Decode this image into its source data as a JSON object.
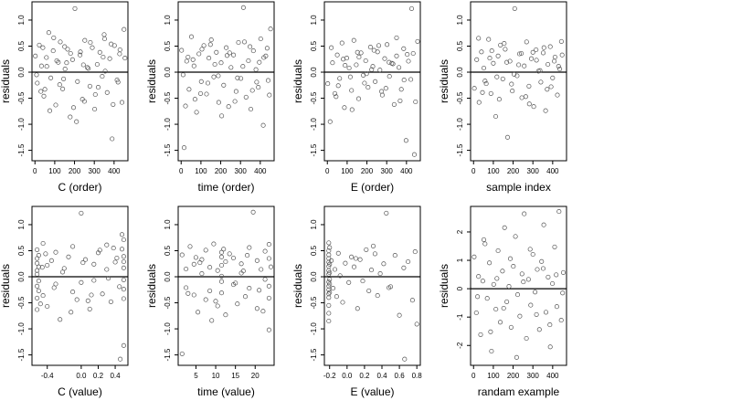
{
  "figure": {
    "point_color": "#555555",
    "zero_line_color": "#000000"
  },
  "chart_data": [
    {
      "type": "scatter",
      "title": "",
      "xlabel": "C (order)",
      "ylabel": "residuals",
      "xlim": [
        -15,
        470
      ],
      "ylim": [
        -1.7,
        1.35
      ],
      "xticks": [
        0,
        100,
        200,
        300,
        400
      ],
      "xtick_labels": [
        "0",
        "100",
        "200",
        "300",
        "400"
      ],
      "yticks": [
        -1.5,
        -1.0,
        -0.5,
        0.0,
        0.5,
        1.0
      ],
      "ytick_labels": [
        "-1.5",
        "-1.0",
        "-0.5",
        "0.0",
        "0.5",
        "1.0"
      ],
      "reference_line_y": 0,
      "x": [
        2,
        12,
        22,
        33,
        45,
        58,
        70,
        80,
        92,
        105,
        118,
        128,
        140,
        152,
        165,
        178,
        190,
        202,
        215,
        228,
        240,
        252,
        265,
        278,
        290,
        302,
        315,
        328,
        340,
        352,
        365,
        378,
        390,
        402,
        415,
        428,
        440,
        450,
        30,
        60,
        95,
        125,
        160,
        195,
        230,
        270,
        305,
        345,
        385,
        420,
        8,
        40,
        75,
        110,
        145,
        180,
        210,
        245,
        280,
        320,
        355,
        395,
        430,
        455,
        50,
        150,
        250,
        350
      ],
      "y": [
        0.31,
        -0.21,
        0.52,
        0.12,
        -0.46,
        0.28,
        0.76,
        -0.11,
        0.41,
        -0.63,
        0.19,
        0.58,
        -0.32,
        0.06,
        0.44,
        -0.86,
        0.24,
        1.22,
        -0.18,
        0.33,
        -0.52,
        0.61,
        0.09,
        -0.27,
        0.47,
        -0.71,
        0.15,
        0.38,
        -0.08,
        0.64,
        -0.39,
        0.26,
        -1.28,
        0.51,
        -0.15,
        0.35,
        -0.58,
        0.82,
        -0.37,
        0.11,
        0.66,
        -0.24,
        0.18,
        -0.68,
        0.39,
        0.07,
        -0.43,
        0.29,
        0.54,
        -0.19,
        -0.05,
        0.47,
        -0.74,
        0.22,
        -0.13,
        0.36,
        -0.95,
        0.14,
        0.57,
        -0.29,
        0.02,
        -0.62,
        0.43,
        0.27,
        -0.33,
        0.49,
        -0.56,
        0.72
      ]
    },
    {
      "type": "scatter",
      "title": "",
      "xlabel": "time (order)",
      "ylabel": "residuals",
      "xlim": [
        -15,
        470
      ],
      "ylim": [
        -1.7,
        1.35
      ],
      "xticks": [
        0,
        100,
        200,
        300,
        400
      ],
      "xtick_labels": [
        "0",
        "100",
        "200",
        "300",
        "400"
      ],
      "yticks": [
        -1.5,
        -1.0,
        -0.5,
        0.0,
        0.5,
        1.0
      ],
      "ytick_labels": [
        "-1.5",
        "-1.0",
        "-0.5",
        "0.0",
        "0.5",
        "1.0"
      ],
      "reference_line_y": 0,
      "x": [
        2,
        15,
        28,
        40,
        52,
        65,
        78,
        90,
        102,
        115,
        128,
        140,
        152,
        165,
        178,
        190,
        202,
        215,
        228,
        240,
        252,
        265,
        278,
        290,
        302,
        315,
        328,
        340,
        352,
        365,
        378,
        390,
        402,
        415,
        428,
        440,
        452,
        10,
        35,
        70,
        105,
        135,
        170,
        205,
        245,
        285,
        320,
        360,
        395,
        435,
        22,
        60,
        98,
        148,
        188,
        232,
        272,
        312,
        348,
        382,
        418,
        446
      ],
      "y": [
        0.42,
        -1.45,
        0.21,
        -0.33,
        0.68,
        0.12,
        -0.77,
        0.35,
        -0.18,
        0.51,
        -0.42,
        0.27,
        0.62,
        -0.09,
        0.38,
        -0.58,
        0.18,
        -0.25,
        0.47,
        -0.66,
        0.09,
        0.33,
        -0.37,
        0.57,
        -0.12,
        1.24,
        -0.48,
        0.22,
        -0.71,
        0.41,
        0.05,
        -0.29,
        0.64,
        -1.02,
        0.31,
        -0.16,
        0.83,
        -0.05,
        0.29,
        -0.52,
        0.44,
        -0.21,
        0.15,
        -0.84,
        0.37,
        -0.11,
        0.58,
        -0.35,
        0.19,
        0.46,
        -0.65,
        0.24,
        -0.41,
        0.53,
        -0.07,
        0.32,
        -0.56,
        0.11,
        0.49,
        -0.19,
        0.28,
        -0.44
      ]
    },
    {
      "type": "scatter",
      "title": "",
      "xlabel": "E (order)",
      "ylabel": "residuals",
      "xlim": [
        -15,
        470
      ],
      "ylim": [
        -1.7,
        1.35
      ],
      "xticks": [
        0,
        100,
        200,
        300,
        400
      ],
      "xtick_labels": [
        "0",
        "100",
        "200",
        "300",
        "400"
      ],
      "yticks": [
        -1.5,
        -1.0,
        -0.5,
        0.0,
        0.5,
        1.0
      ],
      "ytick_labels": [
        "-1.5",
        "-1.0",
        "-0.5",
        "0.0",
        "0.5",
        "1.0"
      ],
      "reference_line_y": 0,
      "x": [
        2,
        14,
        26,
        38,
        50,
        62,
        74,
        86,
        98,
        110,
        122,
        134,
        146,
        158,
        170,
        182,
        194,
        206,
        218,
        230,
        242,
        254,
        266,
        278,
        290,
        302,
        314,
        326,
        338,
        350,
        362,
        374,
        386,
        398,
        410,
        422,
        434,
        446,
        456,
        20,
        55,
        90,
        125,
        160,
        198,
        236,
        274,
        312,
        350,
        388,
        426,
        44,
        80,
        116,
        152,
        188,
        224,
        260,
        296,
        332,
        368,
        404,
        440
      ],
      "y": [
        -0.22,
        -0.95,
        0.18,
        -0.41,
        0.33,
        -0.12,
        0.56,
        -0.68,
        0.27,
        0.08,
        -0.35,
        0.61,
        0.14,
        -0.51,
        0.37,
        -0.06,
        0.22,
        -0.29,
        0.48,
        0.11,
        -0.18,
        0.39,
        0.04,
        -0.44,
        0.26,
        0.53,
        -0.08,
        0.17,
        -0.62,
        0.31,
        0.09,
        -0.33,
        0.45,
        -1.31,
        0.21,
        -0.14,
        0.36,
        -0.57,
        0.59,
        0.47,
        -0.26,
        0.13,
        -0.72,
        0.29,
        -0.03,
        0.42,
        -0.37,
        0.19,
        0.66,
        -0.15,
        1.22,
        -0.47,
        0.25,
        -0.09,
        0.38,
        -0.21,
        0.05,
        0.51,
        -0.31,
        0.16,
        -0.55,
        0.34,
        -1.58
      ]
    },
    {
      "type": "scatter",
      "title": "",
      "xlabel": "sample index",
      "ylabel": "residuals",
      "xlim": [
        -15,
        470
      ],
      "ylim": [
        -1.7,
        1.35
      ],
      "xticks": [
        0,
        100,
        200,
        300,
        400
      ],
      "xtick_labels": [
        "0",
        "100",
        "200",
        "300",
        "400"
      ],
      "yticks": [
        -1.5,
        -1.0,
        -0.5,
        0.0,
        0.5,
        1.0
      ],
      "ytick_labels": [
        "-1.5",
        "-1.0",
        "-0.5",
        "0.0",
        "0.5",
        "1.0"
      ],
      "reference_line_y": 0,
      "x": [
        4,
        16,
        28,
        40,
        52,
        64,
        76,
        88,
        100,
        112,
        124,
        136,
        148,
        160,
        172,
        184,
        196,
        208,
        220,
        232,
        244,
        256,
        268,
        280,
        292,
        304,
        316,
        328,
        340,
        352,
        364,
        376,
        388,
        400,
        412,
        424,
        436,
        448,
        25,
        58,
        92,
        130,
        168,
        205,
        242,
        282,
        318,
        356,
        392,
        430,
        45,
        82,
        118,
        155,
        192,
        228,
        264,
        300,
        336,
        372,
        408,
        444
      ],
      "y": [
        -0.31,
        0.24,
        -0.58,
        0.39,
        0.08,
        -0.22,
        0.63,
        -0.41,
        0.17,
        -0.85,
        0.31,
        0.52,
        -0.13,
        0.44,
        -1.25,
        0.21,
        -0.36,
        1.22,
        -0.07,
        0.35,
        -0.49,
        0.12,
        0.58,
        -0.27,
        0.26,
        -0.66,
        0.43,
        0.02,
        -0.19,
        0.37,
        -0.74,
        0.15,
        0.49,
        -0.11,
        0.29,
        -0.44,
        0.06,
        0.33,
        0.65,
        -0.17,
        0.41,
        -0.52,
        0.19,
        -0.04,
        0.36,
        -0.61,
        0.23,
        0.47,
        -0.28,
        0.11,
        -0.39,
        0.27,
        -0.09,
        0.55,
        -0.23,
        0.14,
        -0.47,
        0.38,
        0.03,
        -0.33,
        0.21,
        0.59
      ]
    },
    {
      "type": "scatter",
      "title": "",
      "xlabel": "C (value)",
      "ylabel": "residuals",
      "xlim": [
        -0.58,
        0.55
      ],
      "ylim": [
        -1.7,
        1.35
      ],
      "xticks": [
        -0.4,
        0.0,
        0.2,
        0.4
      ],
      "xtick_labels": [
        "-0.4",
        "0.0",
        "0.2",
        "0.4"
      ],
      "yticks": [
        -1.5,
        -1.0,
        -0.5,
        0.0,
        0.5,
        1.0
      ],
      "ytick_labels": [
        "-1.5",
        "-1.0",
        "-0.5",
        "0.0",
        "0.5",
        "1.0"
      ],
      "reference_line_y": 0,
      "x": [
        -0.52,
        -0.52,
        -0.52,
        -0.52,
        -0.52,
        -0.52,
        -0.52,
        -0.52,
        -0.5,
        -0.5,
        -0.5,
        -0.5,
        -0.45,
        -0.45,
        -0.4,
        -0.4,
        -0.35,
        -0.3,
        -0.3,
        -0.25,
        -0.2,
        -0.15,
        -0.1,
        -0.1,
        -0.05,
        0.0,
        0.0,
        0.05,
        0.1,
        0.15,
        0.15,
        0.2,
        0.25,
        0.3,
        0.3,
        0.35,
        0.4,
        0.45,
        0.48,
        0.5,
        0.5,
        0.5,
        0.5,
        0.5,
        0.5,
        0.5,
        0.5,
        -0.48,
        -0.42,
        -0.32,
        -0.22,
        -0.12,
        0.02,
        0.12,
        0.22,
        0.32,
        0.42,
        0.46,
        -0.46,
        0.08,
        0.38,
        0.48
      ],
      "y": [
        0.35,
        0.12,
        -0.18,
        0.52,
        -0.41,
        0.26,
        -0.63,
        0.05,
        0.41,
        -0.27,
        0.19,
        -0.08,
        0.64,
        -0.36,
        0.22,
        -0.57,
        0.31,
        -0.14,
        0.47,
        -0.82,
        0.16,
        0.38,
        -0.29,
        0.58,
        -0.44,
        1.22,
        -0.11,
        0.33,
        -0.62,
        0.24,
        -0.07,
        0.46,
        -0.33,
        0.14,
        0.61,
        -0.48,
        0.28,
        -0.19,
        0.53,
        0.39,
        -0.24,
        0.71,
        -0.06,
        0.17,
        -0.42,
        0.29,
        -1.32,
        -0.52,
        0.44,
        -0.21,
        0.09,
        -0.68,
        0.27,
        -0.35,
        0.51,
        -0.03,
        0.36,
        -1.58,
        0.18,
        -0.46,
        0.55,
        0.81
      ]
    },
    {
      "type": "scatter",
      "title": "",
      "xlabel": "time (value)",
      "ylabel": "residuals",
      "xlim": [
        0.5,
        24.8
      ],
      "ylim": [
        -1.7,
        1.35
      ],
      "xticks": [
        5,
        10,
        15,
        20
      ],
      "xtick_labels": [
        "5",
        "10",
        "15",
        "20"
      ],
      "yticks": [
        -1.5,
        -1.0,
        -0.5,
        0.0,
        0.5,
        1.0
      ],
      "ytick_labels": [
        "-1.5",
        "-1.0",
        "-0.5",
        "0.0",
        "0.5",
        "1.0"
      ],
      "reference_line_y": 0,
      "x": [
        1.5,
        1.5,
        2.5,
        2.5,
        3.5,
        4.5,
        4.5,
        5.5,
        6.5,
        6.5,
        7.5,
        7.5,
        8.5,
        8.5,
        9.5,
        10.5,
        10.5,
        11.5,
        11.5,
        11.5,
        11.5,
        11.5,
        11.5,
        12.5,
        12.5,
        13.5,
        14.5,
        14.5,
        15.5,
        16.5,
        16.5,
        17.5,
        18.5,
        18.5,
        19.5,
        20.5,
        20.5,
        21.5,
        22.5,
        22.5,
        23.5,
        23.5,
        23.5,
        23.5,
        23.5,
        3.0,
        6.0,
        9.0,
        12.0,
        15.0,
        18.0,
        21.0,
        24.0,
        5.0,
        10.0,
        17.0,
        22.0
      ],
      "y": [
        0.42,
        -1.48,
        -0.21,
        0.15,
        0.58,
        -0.35,
        0.24,
        -0.68,
        0.33,
        0.06,
        -0.44,
        0.51,
        0.18,
        -0.27,
        0.63,
        0.12,
        -0.56,
        0.38,
        -0.09,
        0.22,
        0.47,
        -0.31,
        0.01,
        -0.73,
        0.29,
        0.44,
        -0.15,
        0.36,
        -0.52,
        0.25,
        0.07,
        -0.38,
        0.56,
        -0.22,
        1.24,
        0.31,
        -0.61,
        0.14,
        -0.05,
        0.49,
        0.35,
        -0.18,
        0.62,
        -0.41,
        -1.02,
        -0.32,
        0.27,
        -0.84,
        0.53,
        -0.12,
        0.41,
        -0.26,
        0.19,
        0.37,
        -0.47,
        0.11,
        -0.66
      ]
    },
    {
      "type": "scatter",
      "title": "",
      "xlabel": "E (value)",
      "ylabel": "residuals",
      "xlim": [
        -0.26,
        0.84
      ],
      "ylim": [
        -1.7,
        1.35
      ],
      "xticks": [
        -0.2,
        0.0,
        0.2,
        0.4,
        0.6,
        0.8
      ],
      "xtick_labels": [
        "-0.2",
        "0.0",
        "0.2",
        "0.4",
        "0.6",
        "0.8"
      ],
      "yticks": [
        -1.5,
        -1.0,
        -0.5,
        0.0,
        0.5,
        1.0
      ],
      "ytick_labels": [
        "-1.5",
        "-1.0",
        "-0.5",
        "0.0",
        "0.5",
        "1.0"
      ],
      "reference_line_y": 0,
      "x": [
        -0.21,
        -0.21,
        -0.21,
        -0.21,
        -0.21,
        -0.21,
        -0.21,
        -0.21,
        -0.21,
        -0.21,
        -0.21,
        -0.21,
        -0.21,
        -0.21,
        -0.21,
        -0.21,
        -0.2,
        -0.2,
        -0.2,
        -0.2,
        -0.2,
        -0.2,
        -0.18,
        -0.16,
        -0.14,
        -0.12,
        -0.1,
        -0.08,
        -0.05,
        -0.02,
        0.02,
        0.05,
        0.08,
        0.12,
        0.15,
        0.18,
        0.22,
        0.25,
        0.28,
        0.32,
        0.35,
        0.38,
        0.42,
        0.45,
        0.5,
        0.55,
        0.6,
        0.65,
        0.7,
        0.75,
        0.78,
        0.8,
        0.1,
        0.3,
        0.48,
        0.66
      ],
      "y": [
        0.05,
        -0.1,
        0.2,
        -0.25,
        0.35,
        -0.4,
        0.5,
        -0.55,
        0.65,
        -0.7,
        0.12,
        -0.18,
        0.28,
        -0.33,
        0.42,
        -0.85,
        0.08,
        -0.14,
        0.24,
        -0.3,
        0.56,
        -0.05,
        0.31,
        -0.22,
        0.14,
        -0.38,
        0.45,
        0.02,
        -0.49,
        0.26,
        -0.11,
        0.38,
        0.19,
        -0.61,
        0.33,
        -0.08,
        0.52,
        -0.27,
        0.13,
        0.44,
        -0.36,
        0.06,
        0.25,
        1.22,
        -0.19,
        0.41,
        -0.74,
        0.17,
        0.29,
        -0.45,
        0.48,
        -0.91,
        0.35,
        0.59,
        -0.21,
        -1.58
      ]
    },
    {
      "type": "scatter",
      "title": "",
      "xlabel": "randam example",
      "ylabel": "residuals",
      "xlim": [
        -15,
        470
      ],
      "ylim": [
        -2.7,
        2.9
      ],
      "xticks": [
        0,
        100,
        200,
        300,
        400
      ],
      "xtick_labels": [
        "0",
        "100",
        "200",
        "300",
        "400"
      ],
      "yticks": [
        -2,
        -1,
        0,
        1,
        2
      ],
      "ytick_labels": [
        "-2",
        "-1",
        "0",
        "1",
        "2"
      ],
      "reference_line_y": 0,
      "x": [
        3,
        14,
        25,
        36,
        47,
        58,
        69,
        80,
        91,
        102,
        113,
        124,
        135,
        146,
        157,
        168,
        179,
        190,
        201,
        212,
        223,
        234,
        245,
        256,
        267,
        278,
        289,
        300,
        311,
        322,
        333,
        344,
        355,
        366,
        377,
        388,
        399,
        410,
        421,
        432,
        443,
        454,
        20,
        52,
        86,
        118,
        152,
        186,
        218,
        252,
        286,
        318,
        352,
        386,
        418,
        450
      ],
      "y": [
        1.12,
        -0.85,
        0.43,
        -1.62,
        0.27,
        1.58,
        -0.34,
        0.91,
        -2.2,
        0.15,
        -0.72,
        1.34,
        -1.18,
        0.62,
        2.15,
        -0.46,
        0.08,
        -1.36,
        0.79,
        1.84,
        -0.21,
        -0.97,
        0.52,
        2.64,
        -1.75,
        0.33,
        -0.58,
        1.21,
        -0.12,
        0.68,
        -1.44,
        0.96,
        2.25,
        -0.83,
        0.41,
        -2.05,
        0.18,
        1.47,
        -0.63,
        2.72,
        -1.11,
        0.57,
        -0.28,
        1.73,
        -1.52,
        0.36,
        -0.69,
        1.06,
        -2.42,
        0.24,
        1.39,
        -0.91,
        0.71,
        -1.27,
        0.49,
        -0.15
      ]
    }
  ]
}
